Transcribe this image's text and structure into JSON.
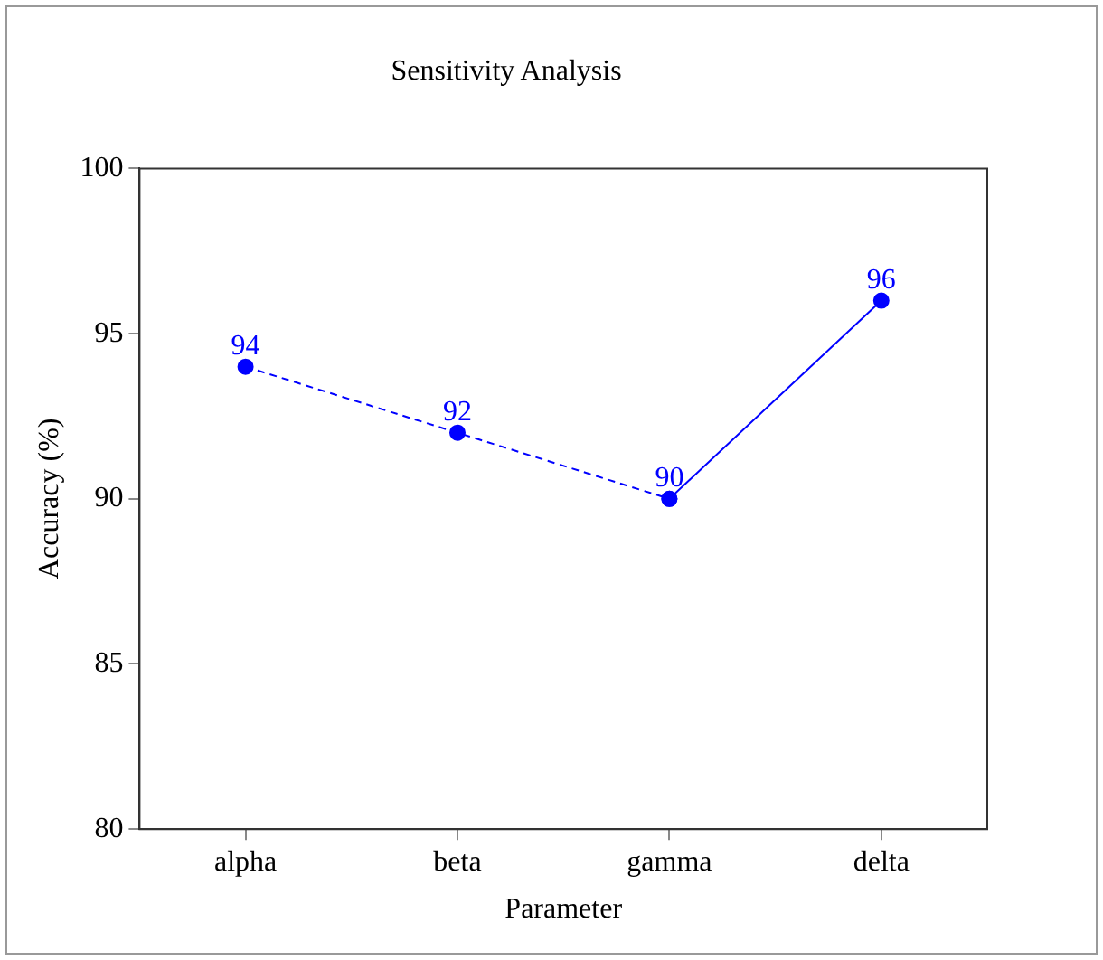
{
  "chart_data": {
    "type": "line",
    "title": "Sensitivity Analysis",
    "xlabel": "Parameter",
    "ylabel": "Accuracy (%)",
    "categories": [
      "alpha",
      "beta",
      "gamma",
      "delta"
    ],
    "series": [
      {
        "color": "#0000ff",
        "values": [
          94,
          92,
          90,
          null
        ],
        "line_style": "dashed",
        "value_labels": [
          "94",
          "92",
          "90",
          null
        ]
      },
      {
        "color": "#0000ff",
        "values": [
          null,
          null,
          90,
          96
        ],
        "line_style": "solid",
        "value_labels": [
          null,
          null,
          null,
          "96"
        ]
      }
    ],
    "ylim": [
      80,
      100
    ],
    "yticks": [
      80,
      85,
      90,
      95,
      100
    ],
    "grid": false,
    "legend": false,
    "marker": "circle"
  }
}
